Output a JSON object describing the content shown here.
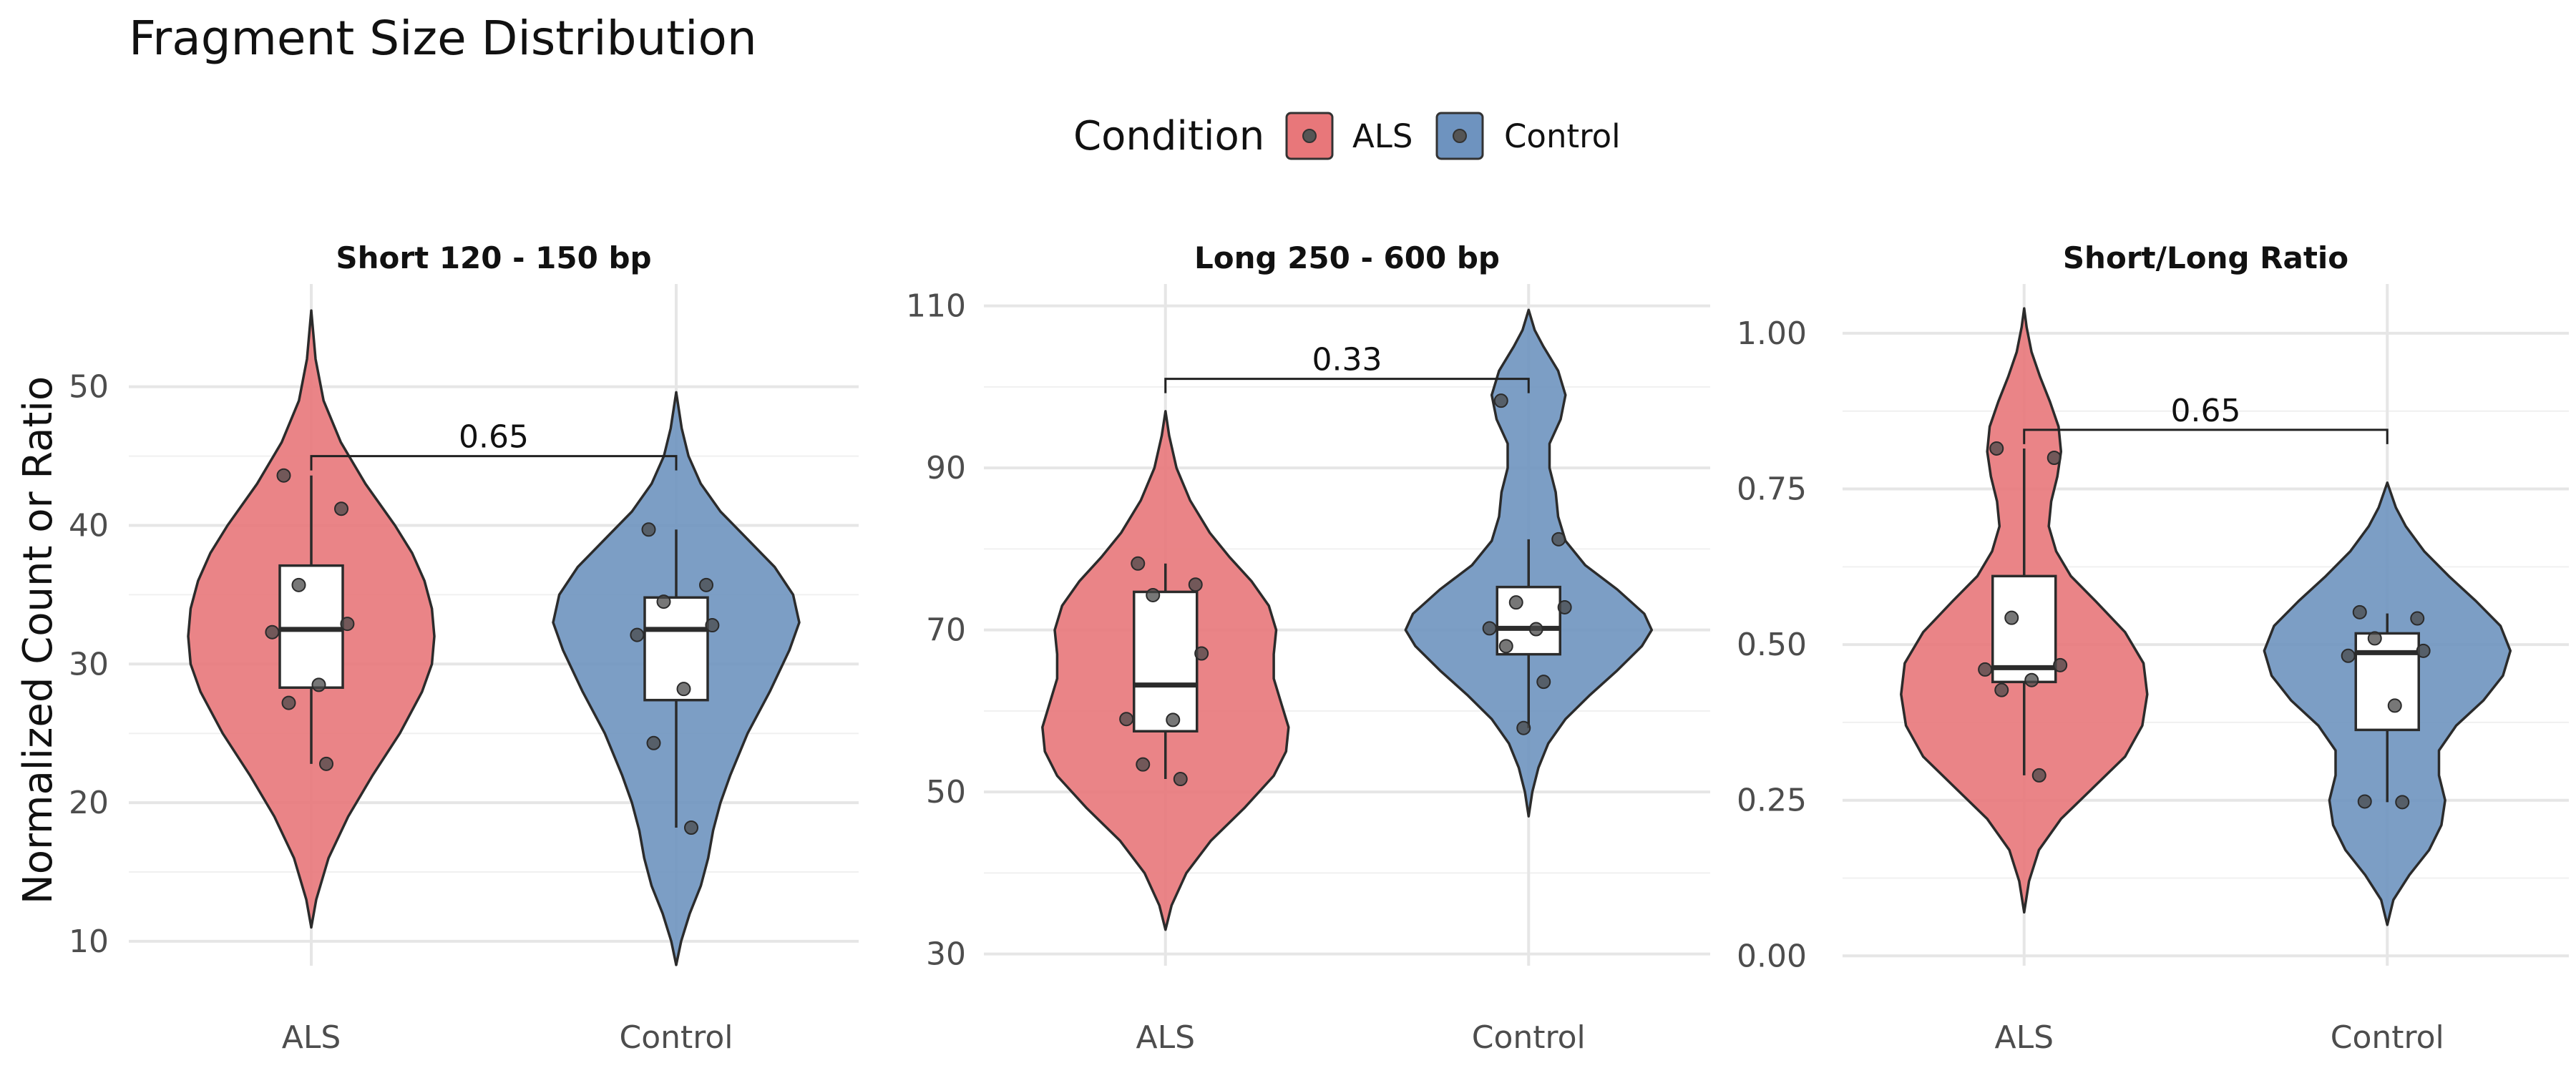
{
  "chart_data": {
    "type": "violin",
    "title": "Fragment Size Distribution",
    "ylabel": "Normalized Count or Ratio",
    "legend": {
      "title": "Condition",
      "placement": "top-center",
      "entries": [
        {
          "label": "ALS",
          "color": "#E8777A"
        },
        {
          "label": "Control",
          "color": "#6E93BF"
        }
      ]
    },
    "categories": [
      "ALS",
      "Control"
    ],
    "grid": true,
    "panels": [
      {
        "title": "Short 120 - 150 bp",
        "ylim": [
          8.5,
          57
        ],
        "yticks": [
          10,
          20,
          30,
          40,
          50
        ],
        "annotation": {
          "label": "0.65",
          "value": 45
        },
        "groups": [
          {
            "name": "ALS",
            "color": "#E8777A",
            "violin_range": [
              11,
              55.5
            ],
            "box": {
              "q1": 28.3,
              "median": 32.5,
              "q3": 37.1,
              "whisker_low": 22.8,
              "whisker_high": 43.6
            },
            "points": [
              43.6,
              41.2,
              35.7,
              32.9,
              32.3,
              28.5,
              27.2,
              22.8
            ],
            "density": [
              [
                11,
                0.0
              ],
              [
                13,
                0.04
              ],
              [
                16,
                0.14
              ],
              [
                19,
                0.3
              ],
              [
                22,
                0.5
              ],
              [
                25,
                0.72
              ],
              [
                28,
                0.9
              ],
              [
                30,
                0.98
              ],
              [
                32,
                1.0
              ],
              [
                34,
                0.98
              ],
              [
                36,
                0.92
              ],
              [
                38,
                0.82
              ],
              [
                40,
                0.68
              ],
              [
                43,
                0.44
              ],
              [
                46,
                0.24
              ],
              [
                49,
                0.1
              ],
              [
                52,
                0.035
              ],
              [
                55.5,
                0.0
              ]
            ]
          },
          {
            "name": "Control",
            "color": "#6E93BF",
            "violin_range": [
              8.3,
              49.6
            ],
            "box": {
              "q1": 27.4,
              "median": 32.5,
              "q3": 34.8,
              "whisker_low": 18.2,
              "whisker_high": 39.7
            },
            "points": [
              39.7,
              35.7,
              34.5,
              32.8,
              32.1,
              28.2,
              24.3,
              18.2
            ],
            "density": [
              [
                8.3,
                0.0
              ],
              [
                10,
                0.04
              ],
              [
                12,
                0.11
              ],
              [
                14,
                0.2
              ],
              [
                16,
                0.26
              ],
              [
                18,
                0.3
              ],
              [
                20,
                0.36
              ],
              [
                22,
                0.44
              ],
              [
                25,
                0.58
              ],
              [
                28,
                0.76
              ],
              [
                31,
                0.92
              ],
              [
                33,
                1.0
              ],
              [
                35,
                0.95
              ],
              [
                37,
                0.8
              ],
              [
                39,
                0.58
              ],
              [
                41,
                0.36
              ],
              [
                43,
                0.2
              ],
              [
                45,
                0.1
              ],
              [
                47,
                0.045
              ],
              [
                49.6,
                0.0
              ]
            ]
          }
        ]
      },
      {
        "title": "Long 250 - 600 bp",
        "ylim": [
          29,
          112
        ],
        "yticks": [
          30,
          50,
          70,
          90,
          110
        ],
        "annotation": {
          "label": "0.33",
          "value": 101
        },
        "groups": [
          {
            "name": "ALS",
            "color": "#E8777A",
            "violin_range": [
              33,
              97
            ],
            "box": {
              "q1": 57.5,
              "median": 63.2,
              "q3": 74.7,
              "whisker_low": 51.6,
              "whisker_high": 78.2
            },
            "points": [
              78.2,
              75.6,
              74.3,
              67.1,
              59,
              58.9,
              53.4,
              51.6
            ],
            "density": [
              [
                33,
                0.0
              ],
              [
                36,
                0.05
              ],
              [
                40,
                0.17
              ],
              [
                44,
                0.37
              ],
              [
                48,
                0.64
              ],
              [
                52,
                0.88
              ],
              [
                55,
                0.98
              ],
              [
                58,
                1.0
              ],
              [
                61,
                0.94
              ],
              [
                64,
                0.88
              ],
              [
                67,
                0.88
              ],
              [
                70,
                0.9
              ],
              [
                73,
                0.84
              ],
              [
                76,
                0.7
              ],
              [
                79,
                0.52
              ],
              [
                82,
                0.36
              ],
              [
                86,
                0.2
              ],
              [
                90,
                0.09
              ],
              [
                94,
                0.03
              ],
              [
                97,
                0.0
              ]
            ]
          },
          {
            "name": "Control",
            "color": "#6E93BF",
            "violin_range": [
              47,
              109.5
            ],
            "box": {
              "q1": 67,
              "median": 70.2,
              "q3": 75.3,
              "whisker_low": 57.9,
              "whisker_high": 81.2
            },
            "points": [
              98.3,
              81.2,
              73.4,
              72.8,
              70.2,
              70.1,
              68,
              63.6,
              57.9
            ],
            "density": [
              [
                47,
                0.0
              ],
              [
                50,
                0.03
              ],
              [
                53,
                0.08
              ],
              [
                56,
                0.16
              ],
              [
                59,
                0.3
              ],
              [
                62,
                0.5
              ],
              [
                65,
                0.72
              ],
              [
                68,
                0.92
              ],
              [
                70,
                1.0
              ],
              [
                72,
                0.94
              ],
              [
                75,
                0.72
              ],
              [
                78,
                0.46
              ],
              [
                81,
                0.3
              ],
              [
                84,
                0.24
              ],
              [
                87,
                0.22
              ],
              [
                90,
                0.17
              ],
              [
                93,
                0.17
              ],
              [
                96,
                0.26
              ],
              [
                99,
                0.3
              ],
              [
                102,
                0.24
              ],
              [
                105,
                0.12
              ],
              [
                107,
                0.05
              ],
              [
                109.5,
                0.0
              ]
            ]
          }
        ]
      },
      {
        "title": "Short/Long Ratio",
        "ylim": [
          -0.01,
          1.07
        ],
        "yticks": [
          "0.00",
          "0.25",
          "0.50",
          "0.75",
          "1.00"
        ],
        "annotation": {
          "label": "0.65",
          "value": 0.845
        },
        "groups": [
          {
            "name": "ALS",
            "color": "#E8777A",
            "violin_range": [
              0.07,
              1.04
            ],
            "box": {
              "q1": 0.44,
              "median": 0.463,
              "q3": 0.61,
              "whisker_low": 0.29,
              "whisker_high": 0.815
            },
            "points": [
              0.815,
              0.8,
              0.543,
              0.467,
              0.46,
              0.443,
              0.427,
              0.29
            ],
            "density": [
              [
                0.07,
                0.0
              ],
              [
                0.12,
                0.04
              ],
              [
                0.17,
                0.12
              ],
              [
                0.22,
                0.3
              ],
              [
                0.27,
                0.56
              ],
              [
                0.32,
                0.82
              ],
              [
                0.37,
                0.96
              ],
              [
                0.42,
                1.0
              ],
              [
                0.47,
                0.97
              ],
              [
                0.52,
                0.82
              ],
              [
                0.57,
                0.58
              ],
              [
                0.61,
                0.38
              ],
              [
                0.65,
                0.26
              ],
              [
                0.69,
                0.2
              ],
              [
                0.73,
                0.22
              ],
              [
                0.77,
                0.27
              ],
              [
                0.81,
                0.3
              ],
              [
                0.85,
                0.28
              ],
              [
                0.89,
                0.21
              ],
              [
                0.93,
                0.13
              ],
              [
                0.97,
                0.06
              ],
              [
                1.01,
                0.02
              ],
              [
                1.04,
                0.0
              ]
            ]
          },
          {
            "name": "Control",
            "color": "#6E93BF",
            "violin_range": [
              0.05,
              0.76
            ],
            "box": {
              "q1": 0.363,
              "median": 0.487,
              "q3": 0.518,
              "whisker_low": 0.247,
              "whisker_high": 0.55
            },
            "points": [
              0.552,
              0.542,
              0.51,
              0.49,
              0.482,
              0.402,
              0.248,
              0.247
            ],
            "density": [
              [
                0.05,
                0.0
              ],
              [
                0.09,
                0.05
              ],
              [
                0.13,
                0.18
              ],
              [
                0.17,
                0.34
              ],
              [
                0.21,
                0.44
              ],
              [
                0.25,
                0.47
              ],
              [
                0.29,
                0.42
              ],
              [
                0.33,
                0.42
              ],
              [
                0.37,
                0.56
              ],
              [
                0.41,
                0.78
              ],
              [
                0.45,
                0.94
              ],
              [
                0.49,
                1.0
              ],
              [
                0.53,
                0.92
              ],
              [
                0.57,
                0.72
              ],
              [
                0.61,
                0.5
              ],
              [
                0.65,
                0.3
              ],
              [
                0.69,
                0.15
              ],
              [
                0.72,
                0.07
              ],
              [
                0.76,
                0.0
              ]
            ]
          }
        ]
      }
    ]
  }
}
